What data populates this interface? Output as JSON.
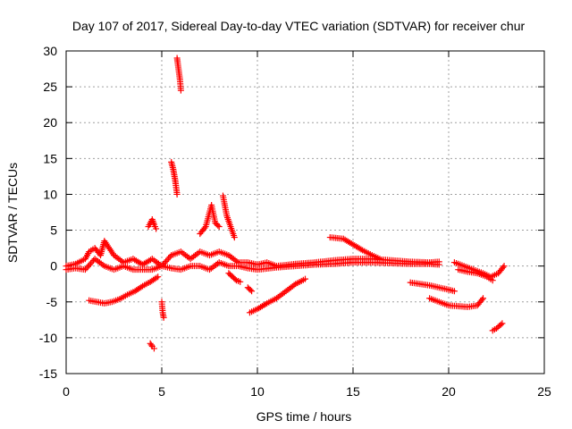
{
  "chart_data": {
    "type": "scatter",
    "title": "Day 107 of 2017, Sidereal Day-to-day VTEC variation (SDTVAR) for receiver chur",
    "xlabel": "GPS time / hours",
    "ylabel": "SDTVAR / TECUs",
    "xlim": [
      0,
      25
    ],
    "ylim": [
      -15,
      30
    ],
    "xticks": [
      0,
      5,
      10,
      15,
      20,
      25
    ],
    "yticks": [
      -15,
      -10,
      -5,
      0,
      5,
      10,
      15,
      20,
      25,
      30
    ],
    "grid": true,
    "marker": "+",
    "color": "#ff0000",
    "segments": [
      {
        "x": [
          0.0,
          0.5,
          1.0,
          1.2,
          1.5,
          1.8,
          2.0,
          2.5,
          3.0,
          3.5,
          4.0,
          4.5,
          5.0,
          5.5,
          6.0,
          6.5,
          7.0,
          7.5,
          8.0,
          8.5,
          9.0,
          9.5,
          10.0,
          10.5,
          11.0,
          12.0,
          13.0,
          14.0,
          15.0,
          16.0,
          17.0,
          18.0,
          19.0,
          19.5
        ],
        "y": [
          0.0,
          0.3,
          1.0,
          2.0,
          2.5,
          1.5,
          3.5,
          1.5,
          0.5,
          1.0,
          0.2,
          1.0,
          0.0,
          1.5,
          2.0,
          1.0,
          2.0,
          1.5,
          2.0,
          1.5,
          0.5,
          0.5,
          0.2,
          0.5,
          0.0,
          0.3,
          0.5,
          0.8,
          1.0,
          1.0,
          0.8,
          0.6,
          0.5,
          0.6
        ]
      },
      {
        "x": [
          0.0,
          0.5,
          1.0,
          1.5,
          2.0,
          2.5,
          3.0,
          3.5,
          4.0,
          4.5,
          5.0,
          5.5,
          6.0,
          6.5,
          7.0,
          7.5,
          8.0,
          8.5,
          9.0,
          9.5,
          10.0,
          11.0,
          12.0,
          13.0,
          14.0,
          15.0,
          16.0,
          17.0,
          18.0,
          19.0,
          19.5
        ],
        "y": [
          -0.5,
          -0.3,
          -0.5,
          1.0,
          0.0,
          -0.5,
          0.0,
          -0.5,
          -0.5,
          -0.5,
          0.0,
          -0.3,
          -0.5,
          0.0,
          0.0,
          -0.5,
          0.5,
          0.0,
          0.0,
          -0.3,
          -0.5,
          -0.2,
          0.0,
          0.2,
          0.3,
          0.5,
          0.5,
          0.4,
          0.3,
          0.3,
          0.2
        ]
      },
      {
        "x": [
          1.2,
          1.6,
          2.0,
          2.4,
          2.8,
          3.2,
          3.6,
          4.0,
          4.4,
          4.8
        ],
        "y": [
          -4.8,
          -5.0,
          -5.2,
          -5.0,
          -4.6,
          -4.0,
          -3.5,
          -2.8,
          -2.2,
          -1.5
        ]
      },
      {
        "x": [
          4.3,
          4.4,
          4.5,
          4.6,
          4.7
        ],
        "y": [
          5.5,
          6.0,
          6.5,
          5.8,
          5.2
        ]
      },
      {
        "x": [
          4.4,
          4.5,
          4.6
        ],
        "y": [
          -10.8,
          -11.2,
          -11.5
        ]
      },
      {
        "x": [
          5.0,
          5.05,
          5.1
        ],
        "y": [
          -5.0,
          -6.5,
          -7.2
        ]
      },
      {
        "x": [
          5.5,
          5.6,
          5.7,
          5.75,
          5.8
        ],
        "y": [
          14.5,
          13.5,
          12.0,
          11.0,
          10.0
        ]
      },
      {
        "x": [
          5.8,
          5.85,
          5.9,
          5.95,
          6.0
        ],
        "y": [
          29.0,
          28.0,
          27.0,
          26.0,
          24.5
        ]
      },
      {
        "x": [
          7.0,
          7.3,
          7.6,
          7.8,
          8.0
        ],
        "y": [
          4.5,
          5.5,
          8.5,
          6.0,
          5.5
        ]
      },
      {
        "x": [
          8.2,
          8.4,
          8.6,
          8.8
        ],
        "y": [
          9.8,
          7.0,
          5.5,
          4.0
        ]
      },
      {
        "x": [
          8.5,
          8.7,
          8.9,
          9.1
        ],
        "y": [
          -1.0,
          -1.5,
          -2.0,
          -2.2
        ]
      },
      {
        "x": [
          9.5,
          9.7
        ],
        "y": [
          -3.0,
          -3.5
        ]
      },
      {
        "x": [
          9.6,
          10.0,
          10.5,
          11.0,
          11.5,
          12.0,
          12.5
        ],
        "y": [
          -6.5,
          -6.0,
          -5.2,
          -4.5,
          -3.5,
          -2.5,
          -1.8
        ]
      },
      {
        "x": [
          13.8,
          14.5,
          15.0,
          15.5,
          16.0,
          16.4
        ],
        "y": [
          4.0,
          3.8,
          3.0,
          2.2,
          1.5,
          1.0
        ]
      },
      {
        "x": [
          18.0,
          18.5,
          19.0,
          19.5,
          20.0,
          20.3
        ],
        "y": [
          -2.3,
          -2.5,
          -2.7,
          -3.0,
          -3.3,
          -3.5
        ]
      },
      {
        "x": [
          19.0,
          19.5,
          20.0,
          20.5,
          21.0,
          21.5,
          21.8
        ],
        "y": [
          -4.5,
          -5.0,
          -5.5,
          -5.6,
          -5.7,
          -5.5,
          -4.5
        ]
      },
      {
        "x": [
          20.3,
          20.8,
          21.3,
          21.8,
          22.2,
          22.6,
          22.9
        ],
        "y": [
          0.5,
          0.0,
          -0.5,
          -1.0,
          -1.5,
          -1.0,
          0.0
        ]
      },
      {
        "x": [
          20.5,
          21.0,
          21.5,
          22.0,
          22.3
        ],
        "y": [
          -0.5,
          -0.8,
          -1.0,
          -1.5,
          -2.0
        ]
      },
      {
        "x": [
          22.3,
          22.5,
          22.8
        ],
        "y": [
          -9.0,
          -8.7,
          -8.0
        ]
      }
    ]
  }
}
